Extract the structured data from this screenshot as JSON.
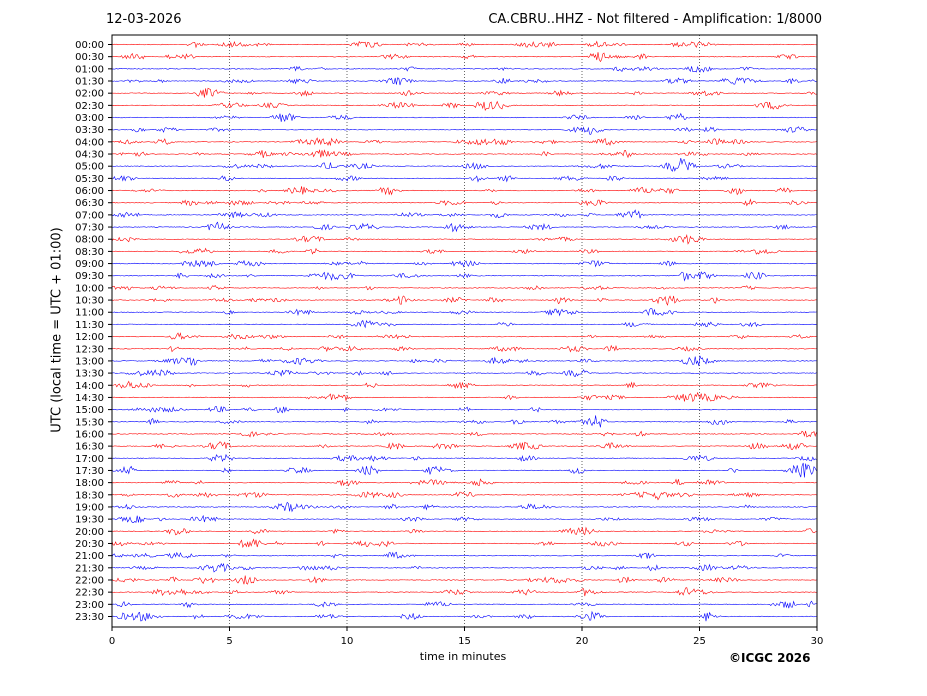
{
  "header": {
    "date": "12-03-2026",
    "station_info": "CA.CBRU..HHZ - Not filtered - Amplification: 1/8000"
  },
  "footer": {
    "copyright": "©ICGC 2026"
  },
  "chart_data": {
    "type": "line",
    "title": "CA.CBRU..HHZ - Not filtered - Amplification: 1/8000",
    "date": "12-03-2026",
    "xlabel": "time in minutes",
    "ylabel": "UTC (local time = UTC + 01:00)",
    "xlim": [
      0,
      30
    ],
    "xticks": [
      0,
      5,
      10,
      15,
      20,
      25,
      30
    ],
    "grid": "vertical dotted lines at x ticks",
    "trace_colors": [
      "#ff0000",
      "#0000ff"
    ],
    "color_pattern": "two red traces then two blue traces, repeating (red starting at 00:00)",
    "rows": [
      "00:00",
      "00:30",
      "01:00",
      "01:30",
      "02:00",
      "02:30",
      "03:00",
      "03:30",
      "04:00",
      "04:30",
      "05:00",
      "05:30",
      "06:00",
      "06:30",
      "07:00",
      "07:30",
      "08:00",
      "08:30",
      "09:00",
      "09:30",
      "10:00",
      "10:30",
      "11:00",
      "11:30",
      "12:00",
      "12:30",
      "13:00",
      "13:30",
      "14:00",
      "14:30",
      "15:00",
      "15:30",
      "16:00",
      "16:30",
      "17:00",
      "17:30",
      "18:00",
      "18:30",
      "19:00",
      "19:30",
      "20:00",
      "20:30",
      "21:00",
      "21:30",
      "22:00",
      "22:30",
      "23:00",
      "23:30"
    ]
  }
}
